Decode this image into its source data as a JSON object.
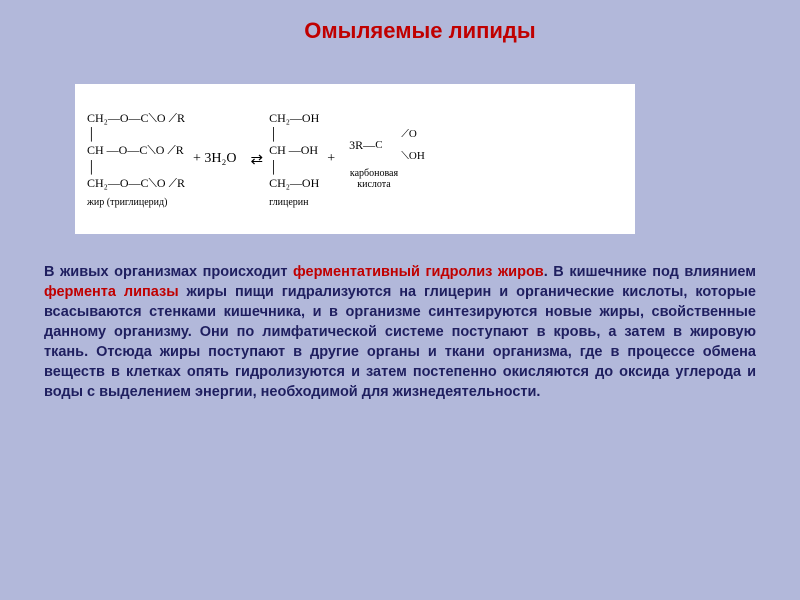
{
  "title": "Омыляемые липиды",
  "diagram": {
    "background": "#ffffff",
    "fat": {
      "lines": [
        "CH₂—O—C⟍O ⟋R",
        "│",
        "CH —O—C⟍O ⟋R",
        "│",
        "CH₂—O—C⟍O ⟋R"
      ],
      "label": "жир (триглицерид)"
    },
    "plus1": "+ 3H₂O",
    "arrow": "⇄",
    "glycerol": {
      "lines": [
        "CH₂—OH",
        "│",
        "CH —OH",
        "│",
        "CH₂—OH"
      ],
      "label": "глицерин"
    },
    "plus2": "+",
    "acid": {
      "prefix": "3R—",
      "top": "⟋O",
      "mid": "C",
      "bot": "⟍OH",
      "label": "карбоновая\nкислота"
    }
  },
  "paragraph": {
    "p1a": "В живых организмах происходит ",
    "p1b": "ферментативный гидролиз жиров",
    "p1c": ". В кишечнике под влиянием ",
    "p1d": "фермента липазы",
    "p1e": " жиры пищи гидрализуются на глицерин и органические кислоты, которые всасываются стенками кишечника, и в организме синтезируются новые жиры, свойственные данному организму. Они по лимфатической системе поступают в кровь, а затем в жировую ткань. Отсюда жиры поступают в другие органы и ткани организма, где в процессе обмена веществ в клетках опять гидролизуются и затем постепенно окисляются до оксида углерода и воды с выделением энергии, необходимой для жизнедеятельности."
  },
  "colors": {
    "slide_bg": "#b2b8da",
    "title_color": "#c00000",
    "body_color": "#1f1f5f",
    "highlight": "#c00000"
  },
  "fonts": {
    "title_size": 22,
    "body_size": 14.5,
    "chem_size": 12
  }
}
